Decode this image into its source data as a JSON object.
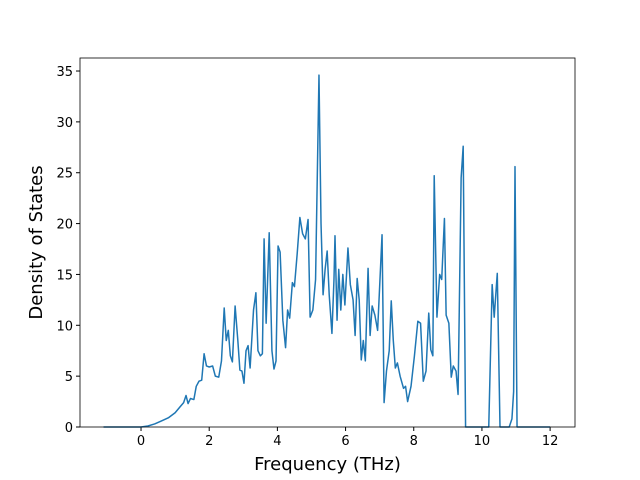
{
  "chart_data": {
    "type": "line",
    "x_label": "Frequency (THz)",
    "y_label": "Density of States",
    "x": [
      -1.1,
      0,
      0.2,
      0.4,
      0.6,
      0.8,
      1.0,
      1.15,
      1.25,
      1.32,
      1.38,
      1.45,
      1.55,
      1.62,
      1.7,
      1.78,
      1.85,
      1.92,
      2.0,
      2.1,
      2.18,
      2.28,
      2.36,
      2.44,
      2.5,
      2.56,
      2.62,
      2.68,
      2.76,
      2.84,
      2.9,
      2.96,
      3.02,
      3.08,
      3.14,
      3.2,
      3.3,
      3.37,
      3.43,
      3.5,
      3.56,
      3.61,
      3.67,
      3.76,
      3.84,
      3.9,
      3.96,
      4.02,
      4.08,
      4.16,
      4.24,
      4.3,
      4.36,
      4.44,
      4.5,
      4.58,
      4.66,
      4.74,
      4.82,
      4.9,
      4.96,
      5.04,
      5.12,
      5.22,
      5.28,
      5.34,
      5.4,
      5.46,
      5.52,
      5.6,
      5.66,
      5.69,
      5.75,
      5.8,
      5.86,
      5.92,
      5.98,
      6.07,
      6.14,
      6.22,
      6.28,
      6.34,
      6.4,
      6.46,
      6.52,
      6.58,
      6.66,
      6.72,
      6.78,
      6.86,
      6.94,
      7.07,
      7.13,
      7.2,
      7.28,
      7.34,
      7.4,
      7.46,
      7.52,
      7.6,
      7.7,
      7.76,
      7.82,
      7.92,
      8.02,
      8.12,
      8.2,
      8.28,
      8.36,
      8.44,
      8.5,
      8.56,
      8.6,
      8.68,
      8.76,
      8.82,
      8.9,
      8.95,
      9.03,
      9.1,
      9.16,
      9.24,
      9.3,
      9.39,
      9.45,
      9.52,
      10.2,
      10.3,
      10.36,
      10.45,
      10.53,
      10.8,
      10.88,
      10.93,
      10.97,
      11.03,
      12.0
    ],
    "series": [
      {
        "color": "#1f77b4",
        "values": [
          0,
          0,
          0.1,
          0.3,
          0.6,
          0.9,
          1.4,
          2.0,
          2.4,
          3.1,
          2.3,
          2.8,
          2.7,
          4.0,
          4.5,
          4.6,
          7.2,
          6.0,
          5.9,
          6.0,
          5.0,
          4.9,
          6.5,
          11.7,
          8.5,
          9.5,
          7.0,
          6.4,
          11.9,
          8.5,
          5.6,
          5.5,
          4.3,
          7.5,
          8.0,
          5.8,
          11.5,
          13.2,
          7.5,
          7.0,
          7.2,
          18.5,
          10.2,
          19.1,
          7.5,
          5.7,
          6.5,
          17.8,
          17.2,
          10.5,
          7.8,
          11.5,
          10.7,
          14.2,
          13.8,
          17,
          20.6,
          19.0,
          18.5,
          20.4,
          10.8,
          11.5,
          14.5,
          34.6,
          20.0,
          13.0,
          15.5,
          17.3,
          13.0,
          9.2,
          14.5,
          18.8,
          10.5,
          15.5,
          11.5,
          15.0,
          12.0,
          17.6,
          14.0,
          12.5,
          9.0,
          14.6,
          12.5,
          6.6,
          8.5,
          6.5,
          15.6,
          9.0,
          11.9,
          11.0,
          9.5,
          18.9,
          2.4,
          5.5,
          7.5,
          12.4,
          8.5,
          5.8,
          6.3,
          5.0,
          3.8,
          4.0,
          2.5,
          4.0,
          7.0,
          10.4,
          10.2,
          4.5,
          5.5,
          11.2,
          7.6,
          7.0,
          24.7,
          10.8,
          15.0,
          14.5,
          20.5,
          11.0,
          10.2,
          4.9,
          6.0,
          5.5,
          3.2,
          24.5,
          27.6,
          0,
          0,
          14.0,
          10.8,
          15.1,
          0,
          0,
          0.8,
          3.5,
          25.6,
          0,
          0
        ]
      }
    ],
    "xlim": [
      -1.79,
      12.73
    ],
    "ylim": [
      0,
      36.28
    ],
    "xticks": [
      0,
      2,
      4,
      6,
      8,
      10,
      12
    ],
    "yticks": [
      0,
      5,
      10,
      15,
      20,
      25,
      30,
      35
    ]
  }
}
